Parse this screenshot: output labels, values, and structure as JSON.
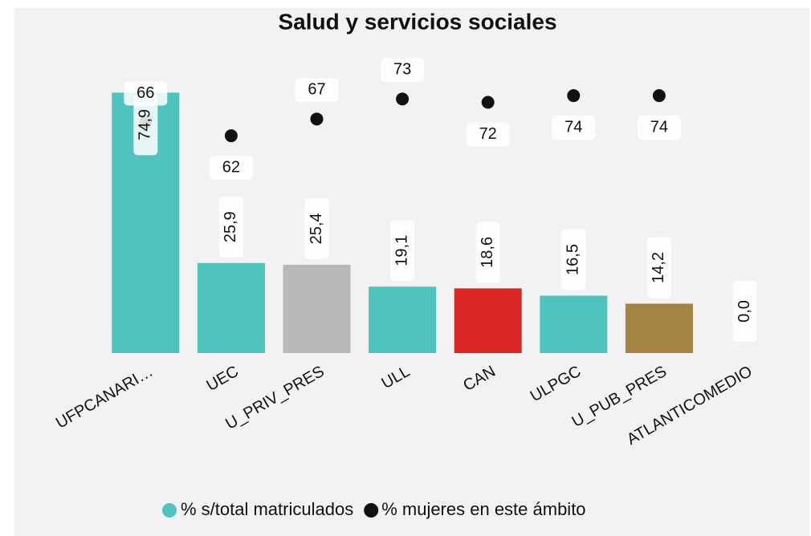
{
  "chart_data": {
    "type": "bar",
    "title": "Salud y servicios sociales",
    "categories": [
      "UFPCANARI…",
      "UEC",
      "U_PRIV_PRES",
      "ULL",
      "CAN",
      "ULPGC",
      "U_PUB_PRES",
      "ATLANTICOMEDIO"
    ],
    "series": [
      {
        "name": "% s/total matriculados",
        "color": "#4fc3be",
        "colors": [
          "#4fc3be",
          "#4fc3be",
          "#b8b8b8",
          "#4fc3be",
          "#dc2626",
          "#4fc3be",
          "#a58343",
          "#4fc3be"
        ],
        "values": [
          74.9,
          25.9,
          25.4,
          19.1,
          18.6,
          16.5,
          14.2,
          0.0
        ],
        "value_labels": [
          "74,9",
          "25,9",
          "25,4",
          "19,1",
          "18,6",
          "16,5",
          "14,2",
          "0,0"
        ]
      },
      {
        "name": "% mujeres en este ámbito",
        "color": "#111111",
        "axis": "y2",
        "values": [
          66,
          62,
          67,
          73,
          72,
          74,
          74,
          null
        ]
      }
    ],
    "ylim": [
      0,
      75
    ],
    "y2lim": [
      -3,
      75
    ]
  }
}
